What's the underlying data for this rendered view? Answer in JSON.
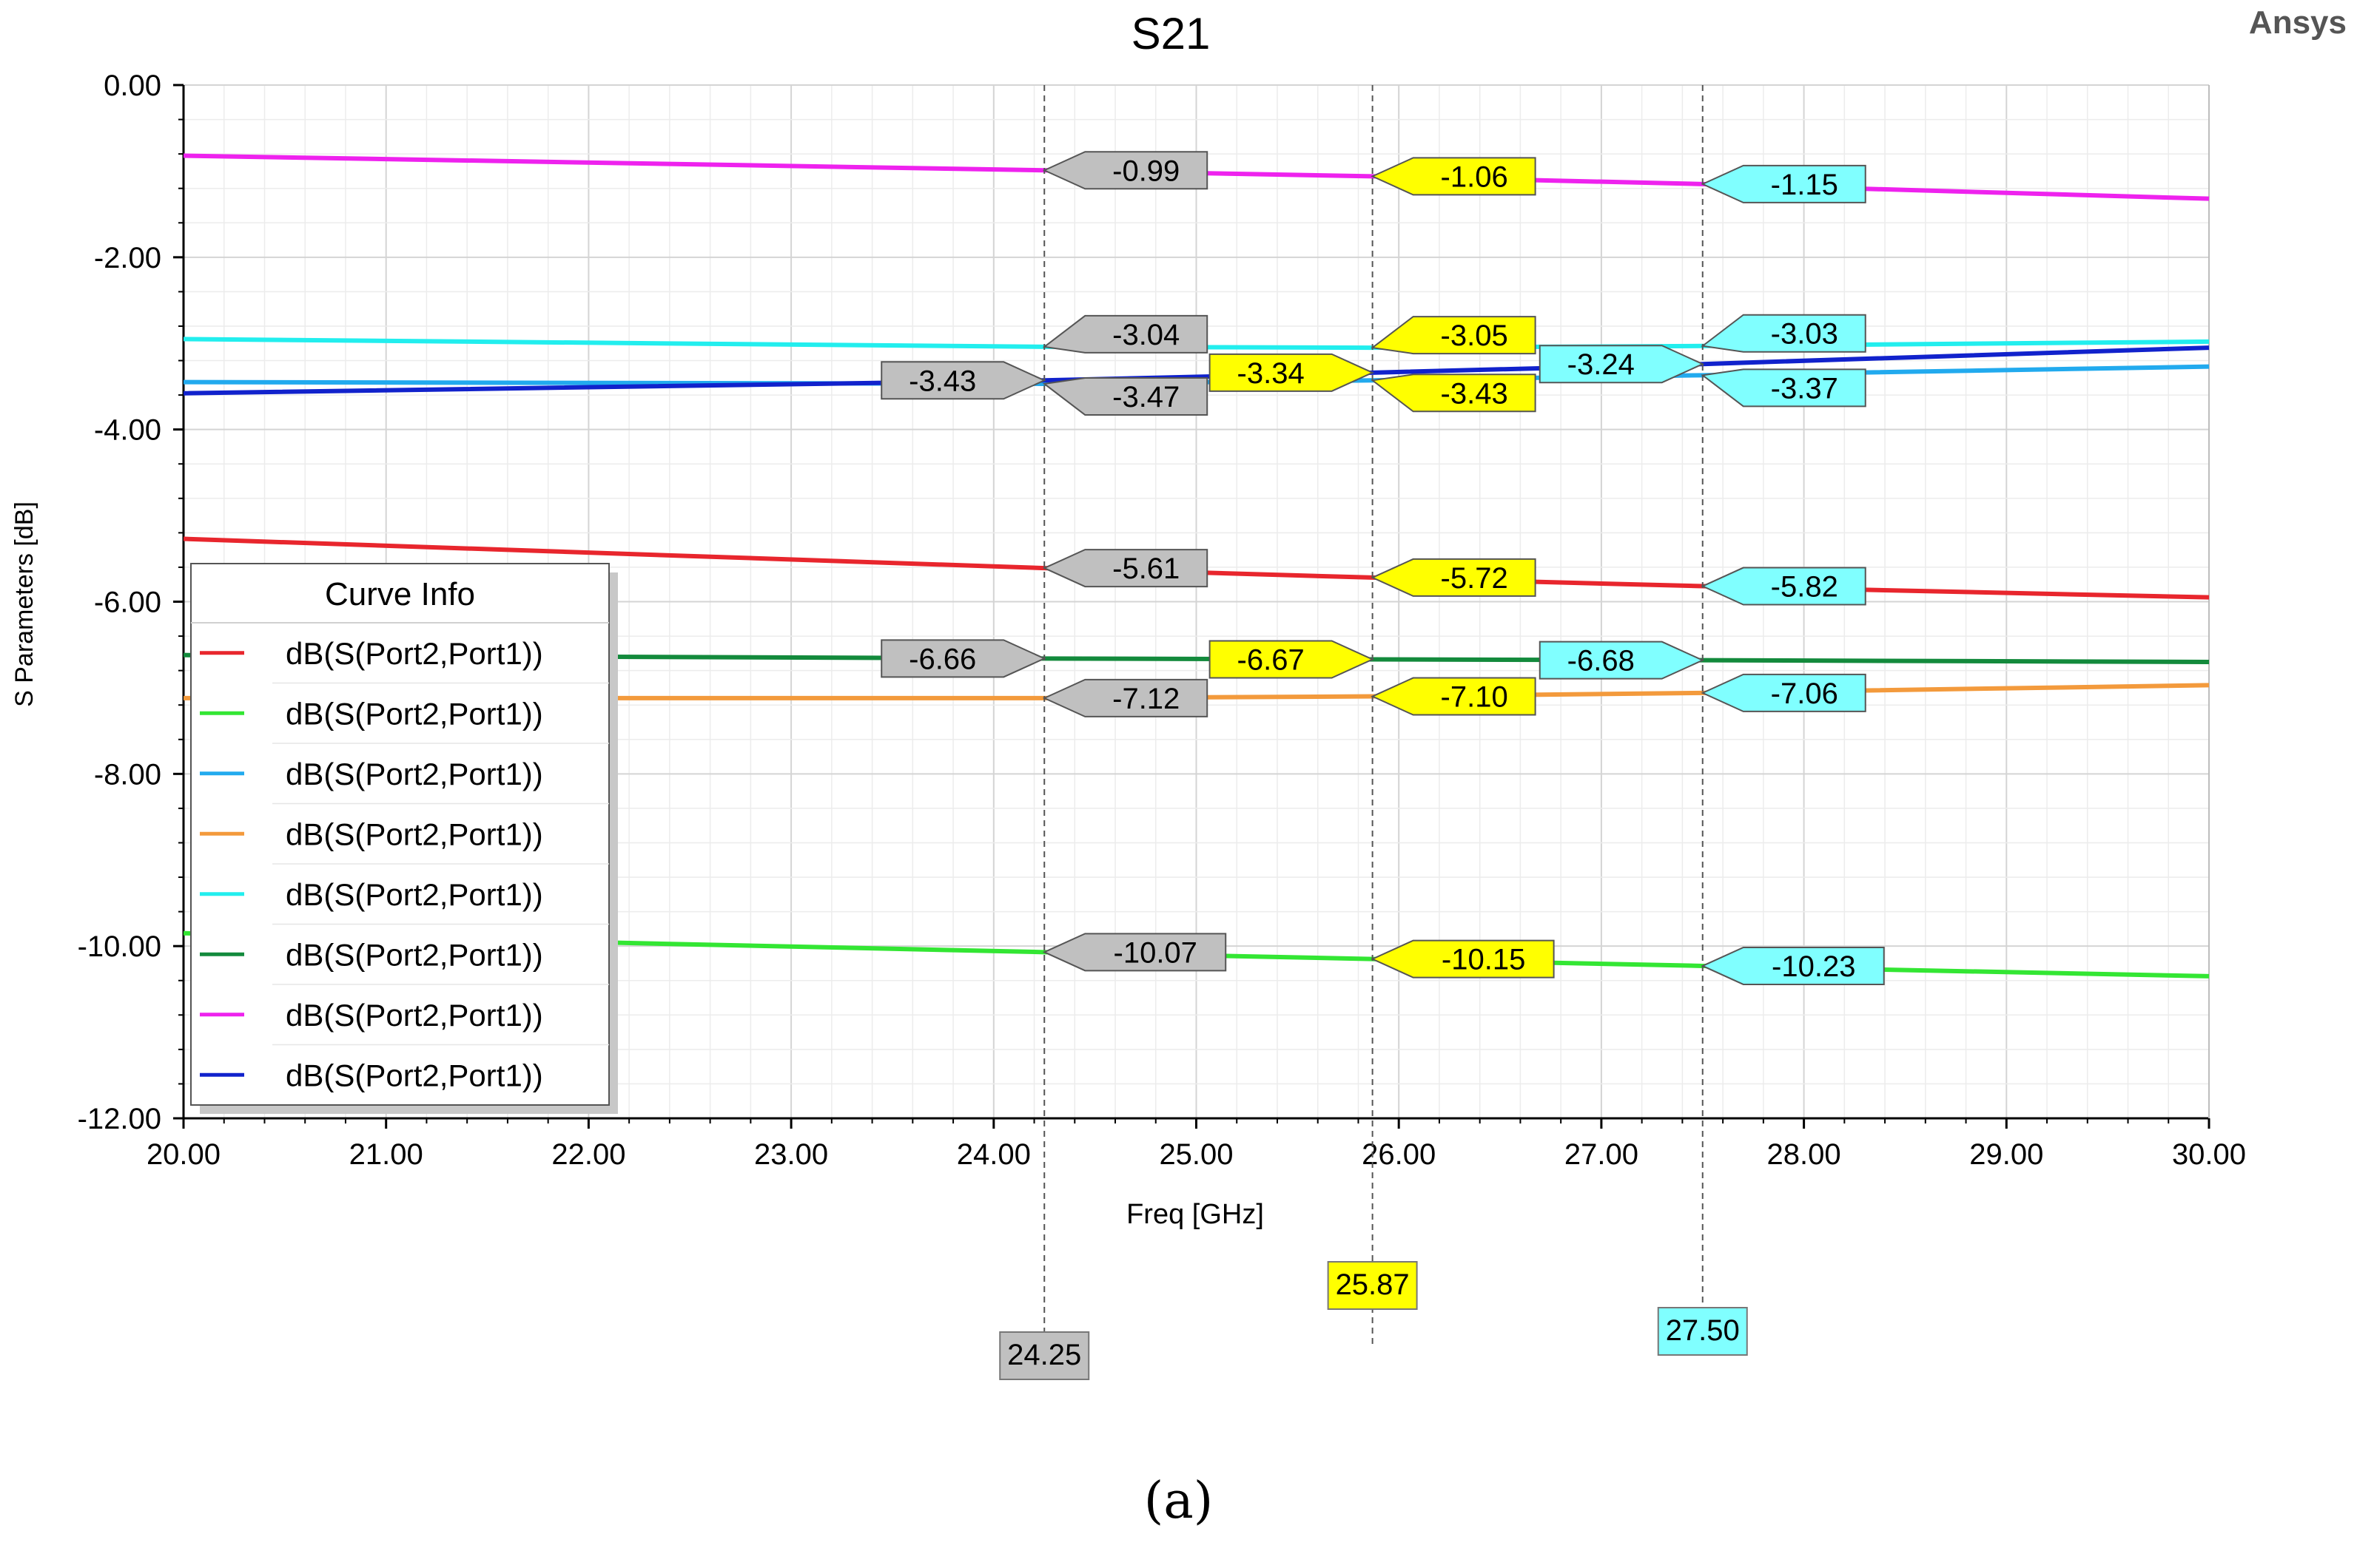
{
  "brand": "Ansys",
  "caption": "(a)",
  "chart_data": {
    "type": "line",
    "title": "S21",
    "xlabel": "Freq [GHz]",
    "ylabel": "S Parameters [dB]",
    "xlim": [
      20,
      30
    ],
    "ylim": [
      -12,
      0
    ],
    "x_ticks": [
      20,
      21,
      22,
      23,
      24,
      25,
      26,
      27,
      28,
      29,
      30
    ],
    "y_ticks": [
      0,
      -2,
      -4,
      -6,
      -8,
      -10,
      -12
    ],
    "grid": true,
    "legend": {
      "title": "Curve Info",
      "placement": "middle-left",
      "entries": [
        {
          "label": "dB(S(Port2,Port1))",
          "color": "#e8262d"
        },
        {
          "label": "dB(S(Port2,Port1))",
          "color": "#33e633"
        },
        {
          "label": "dB(S(Port2,Port1))",
          "color": "#22aaee"
        },
        {
          "label": "dB(S(Port2,Port1))",
          "color": "#f39a3c"
        },
        {
          "label": "dB(S(Port2,Port1))",
          "color": "#22eeee"
        },
        {
          "label": "dB(S(Port2,Port1))",
          "color": "#138a3c"
        },
        {
          "label": "dB(S(Port2,Port1))",
          "color": "#ee22ee"
        },
        {
          "label": "dB(S(Port2,Port1))",
          "color": "#1122cc"
        }
      ]
    },
    "series": [
      {
        "color": "#e8262d",
        "x": [
          20,
          24.25,
          25.87,
          27.5,
          30
        ],
        "y": [
          -5.27,
          -5.61,
          -5.72,
          -5.82,
          -5.95
        ]
      },
      {
        "color": "#33e633",
        "x": [
          20,
          24.25,
          25.87,
          27.5,
          30
        ],
        "y": [
          -9.85,
          -10.07,
          -10.15,
          -10.23,
          -10.35
        ]
      },
      {
        "color": "#22aaee",
        "x": [
          20,
          24.25,
          25.87,
          27.5,
          30
        ],
        "y": [
          -3.45,
          -3.47,
          -3.43,
          -3.37,
          -3.27
        ]
      },
      {
        "color": "#f39a3c",
        "x": [
          20,
          24.25,
          25.87,
          27.5,
          30
        ],
        "y": [
          -7.12,
          -7.12,
          -7.1,
          -7.06,
          -6.97
        ]
      },
      {
        "color": "#22eeee",
        "x": [
          20,
          24.25,
          25.87,
          27.5,
          30
        ],
        "y": [
          -2.95,
          -3.04,
          -3.05,
          -3.03,
          -2.98
        ]
      },
      {
        "color": "#138a3c",
        "x": [
          20,
          24.25,
          25.87,
          27.5,
          30
        ],
        "y": [
          -6.62,
          -6.66,
          -6.67,
          -6.68,
          -6.7
        ]
      },
      {
        "color": "#ee22ee",
        "x": [
          20,
          24.25,
          25.87,
          27.5,
          30
        ],
        "y": [
          -0.82,
          -0.99,
          -1.06,
          -1.15,
          -1.32
        ]
      },
      {
        "color": "#1122cc",
        "x": [
          20,
          24.25,
          25.87,
          27.5,
          30
        ],
        "y": [
          -3.58,
          -3.43,
          -3.34,
          -3.24,
          -3.05
        ]
      }
    ],
    "markers": [
      {
        "x": 24.25,
        "x_label": "24.25",
        "color": "#c0c0c0",
        "labels": [
          {
            "text": "-0.99",
            "y": -0.99,
            "side": "right"
          },
          {
            "text": "-3.04",
            "y": -3.04,
            "side": "right"
          },
          {
            "text": "-3.47",
            "y": -3.47,
            "side": "right"
          },
          {
            "text": "-3.43",
            "y": -3.43,
            "side": "left"
          },
          {
            "text": "-5.61",
            "y": -5.61,
            "side": "right"
          },
          {
            "text": "-6.66",
            "y": -6.66,
            "side": "left"
          },
          {
            "text": "-7.12",
            "y": -7.12,
            "side": "right"
          },
          {
            "text": "-10.07",
            "y": -10.07,
            "side": "right"
          }
        ]
      },
      {
        "x": 25.87,
        "x_label": "25.87",
        "color": "#ffff00",
        "labels": [
          {
            "text": "-1.06",
            "y": -1.06,
            "side": "right"
          },
          {
            "text": "-3.05",
            "y": -3.05,
            "side": "right"
          },
          {
            "text": "-3.43",
            "y": -3.43,
            "side": "right"
          },
          {
            "text": "-3.34",
            "y": -3.34,
            "side": "left"
          },
          {
            "text": "-5.72",
            "y": -5.72,
            "side": "right"
          },
          {
            "text": "-6.67",
            "y": -6.67,
            "side": "left"
          },
          {
            "text": "-7.10",
            "y": -7.1,
            "side": "right"
          },
          {
            "text": "-10.15",
            "y": -10.15,
            "side": "right"
          }
        ]
      },
      {
        "x": 27.5,
        "x_label": "27.50",
        "color": "#80ffff",
        "labels": [
          {
            "text": "-1.15",
            "y": -1.15,
            "side": "right"
          },
          {
            "text": "-3.03",
            "y": -3.03,
            "side": "right"
          },
          {
            "text": "-3.37",
            "y": -3.37,
            "side": "right"
          },
          {
            "text": "-3.24",
            "y": -3.24,
            "side": "left"
          },
          {
            "text": "-5.82",
            "y": -5.82,
            "side": "right"
          },
          {
            "text": "-6.68",
            "y": -6.68,
            "side": "left"
          },
          {
            "text": "-7.06",
            "y": -7.06,
            "side": "right"
          },
          {
            "text": "-10.23",
            "y": -10.23,
            "side": "right"
          }
        ]
      }
    ]
  }
}
